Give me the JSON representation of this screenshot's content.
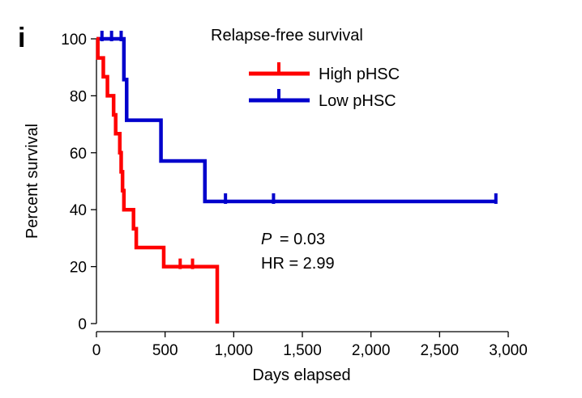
{
  "chart_data": {
    "type": "line",
    "panel_label": "i",
    "title": "Relapse-free survival",
    "xlabel": "Days elapsed",
    "ylabel": "Percent survival",
    "xlim": [
      0,
      3000
    ],
    "ylim": [
      0,
      100
    ],
    "x_ticks": [
      0,
      500,
      1000,
      1500,
      2000,
      2500,
      3000
    ],
    "x_tick_labels": [
      "0",
      "500",
      "1,000",
      "1,500",
      "2,000",
      "2,500",
      "3,000"
    ],
    "y_ticks": [
      0,
      20,
      40,
      60,
      80,
      100
    ],
    "y_tick_labels": [
      "0",
      "20",
      "40",
      "60",
      "80",
      "100"
    ],
    "grid": false,
    "legend_position": "top-right",
    "series": [
      {
        "name": "High pHSC",
        "color": "#ff0000",
        "steps": [
          [
            0,
            100
          ],
          [
            10,
            93.3
          ],
          [
            50,
            86.7
          ],
          [
            80,
            80
          ],
          [
            125,
            73.3
          ],
          [
            140,
            66.7
          ],
          [
            170,
            60
          ],
          [
            180,
            53.3
          ],
          [
            190,
            46.7
          ],
          [
            200,
            40
          ],
          [
            270,
            33.3
          ],
          [
            290,
            26.7
          ],
          [
            490,
            20
          ],
          [
            880,
            0
          ]
        ],
        "censored": [
          [
            610,
            20
          ],
          [
            700,
            20
          ]
        ]
      },
      {
        "name": "Low pHSC",
        "color": "#0000cc",
        "steps": [
          [
            0,
            100
          ],
          [
            200,
            85.7
          ],
          [
            220,
            71.4
          ],
          [
            470,
            57.1
          ],
          [
            790,
            42.9
          ],
          [
            2910,
            42.9
          ]
        ],
        "censored": [
          [
            40,
            100
          ],
          [
            110,
            100
          ],
          [
            180,
            100
          ],
          [
            940,
            42.9
          ],
          [
            1290,
            42.9
          ],
          [
            2910,
            42.9
          ]
        ]
      }
    ],
    "annotations": {
      "p_label": "P",
      "p_value": "= 0.03",
      "hr": "HR = 2.99"
    }
  }
}
